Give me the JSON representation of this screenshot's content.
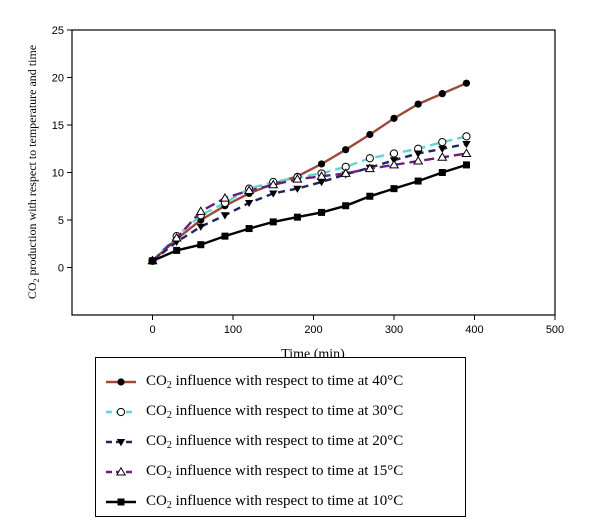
{
  "chart_data": {
    "type": "line",
    "xlabel": "Time (min)",
    "ylabel_main": "CO",
    "ylabel_sub": "2",
    "ylabel_rest": " production with respect to temperature and time",
    "xlim": [
      -100,
      500
    ],
    "ylim": [
      -5,
      25
    ],
    "xticks": [
      0,
      100,
      200,
      300,
      400,
      500
    ],
    "yticks": [
      0,
      5,
      10,
      15,
      20,
      25
    ],
    "grid": false,
    "legend_position": "bottom",
    "series": [
      {
        "name_main": "CO",
        "name_sub": "2",
        "name_rest": " influence with respect to time at 40°C",
        "color": "#9c4a3a",
        "dash": "",
        "marker": "circle-filled",
        "x": [
          0,
          30,
          60,
          90,
          120,
          150,
          180,
          210,
          240,
          270,
          300,
          330,
          360,
          390
        ],
        "y": [
          0.7,
          3.0,
          5.0,
          6.5,
          7.8,
          8.8,
          9.6,
          10.9,
          12.4,
          14.0,
          15.7,
          17.2,
          18.3,
          19.4
        ]
      },
      {
        "name_main": "CO",
        "name_sub": "2",
        "name_rest": " influence with respect to time at 30°C",
        "color": "#5ed6d6",
        "dash": "9,5",
        "marker": "circle-open",
        "x": [
          0,
          30,
          60,
          90,
          120,
          150,
          180,
          210,
          240,
          270,
          300,
          330,
          360,
          390
        ],
        "y": [
          0.7,
          3.3,
          5.5,
          6.8,
          8.3,
          9.0,
          9.5,
          9.9,
          10.6,
          11.5,
          12.0,
          12.5,
          13.2,
          13.8
        ]
      },
      {
        "name_main": "CO",
        "name_sub": "2",
        "name_rest": " influence with respect to time at 20°C",
        "color": "#1a2a5e",
        "dash": "7,5",
        "marker": "triangle-down-filled",
        "x": [
          0,
          30,
          60,
          90,
          120,
          150,
          180,
          210,
          240,
          270,
          300,
          330,
          360,
          390
        ],
        "y": [
          0.7,
          2.7,
          4.3,
          5.5,
          6.8,
          7.8,
          8.3,
          9.0,
          9.8,
          10.5,
          11.3,
          12.0,
          12.5,
          13.0
        ]
      },
      {
        "name_main": "CO",
        "name_sub": "2",
        "name_rest": " influence with respect to time at 15°C",
        "color": "#6a1f7a",
        "dash": "10,5",
        "marker": "triangle-up-open",
        "x": [
          0,
          30,
          60,
          90,
          120,
          150,
          180,
          210,
          240,
          270,
          300,
          330,
          360,
          390
        ],
        "y": [
          0.7,
          3.1,
          5.9,
          7.3,
          8.1,
          8.7,
          9.3,
          9.6,
          9.9,
          10.4,
          10.8,
          11.2,
          11.6,
          12.0
        ]
      },
      {
        "name_main": "CO",
        "name_sub": "2",
        "name_rest": " influence with respect to time at 10°C",
        "color": "#000000",
        "dash": "",
        "marker": "square-filled",
        "x": [
          0,
          30,
          60,
          90,
          120,
          150,
          180,
          210,
          240,
          270,
          300,
          330,
          360,
          390
        ],
        "y": [
          0.7,
          1.8,
          2.4,
          3.3,
          4.1,
          4.8,
          5.3,
          5.8,
          6.5,
          7.5,
          8.3,
          9.1,
          10.0,
          10.8
        ]
      }
    ]
  }
}
